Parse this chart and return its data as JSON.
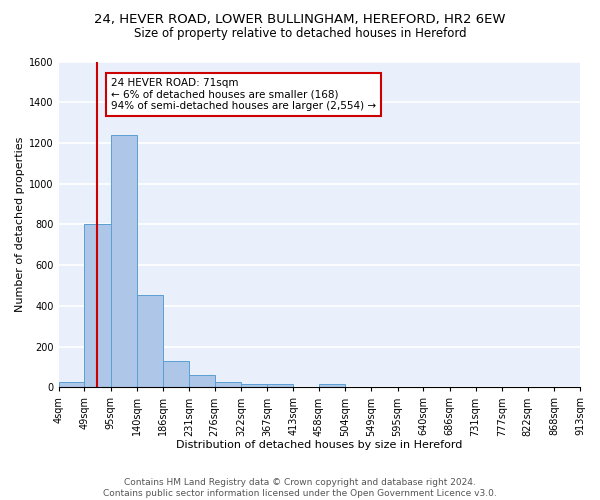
{
  "title1": "24, HEVER ROAD, LOWER BULLINGHAM, HEREFORD, HR2 6EW",
  "title2": "Size of property relative to detached houses in Hereford",
  "xlabel": "Distribution of detached houses by size in Hereford",
  "ylabel": "Number of detached properties",
  "bar_edges": [
    4,
    49,
    95,
    140,
    186,
    231,
    276,
    322,
    367,
    413,
    458,
    504,
    549,
    595,
    640,
    686,
    731,
    777,
    822,
    868,
    913
  ],
  "bar_heights": [
    25,
    800,
    1240,
    455,
    130,
    62,
    28,
    18,
    18,
    0,
    18,
    0,
    0,
    0,
    0,
    0,
    0,
    0,
    0,
    0
  ],
  "bar_color": "#aec6e8",
  "bar_edge_color": "#5a9fd4",
  "bg_color": "#eaf0fb",
  "grid_color": "#ffffff",
  "vline_x": 71,
  "vline_color": "#cc0000",
  "annotation_text": "24 HEVER ROAD: 71sqm\n← 6% of detached houses are smaller (168)\n94% of semi-detached houses are larger (2,554) →",
  "annotation_box_color": "#ffffff",
  "annotation_box_edge": "#cc0000",
  "ylim": [
    0,
    1600
  ],
  "yticks": [
    0,
    200,
    400,
    600,
    800,
    1000,
    1200,
    1400,
    1600
  ],
  "tick_labels": [
    "4sqm",
    "49sqm",
    "95sqm",
    "140sqm",
    "186sqm",
    "231sqm",
    "276sqm",
    "322sqm",
    "367sqm",
    "413sqm",
    "458sqm",
    "504sqm",
    "549sqm",
    "595sqm",
    "640sqm",
    "686sqm",
    "731sqm",
    "777sqm",
    "822sqm",
    "868sqm",
    "913sqm"
  ],
  "footer": "Contains HM Land Registry data © Crown copyright and database right 2024.\nContains public sector information licensed under the Open Government Licence v3.0.",
  "title1_fontsize": 9.5,
  "title2_fontsize": 8.5,
  "xlabel_fontsize": 8,
  "ylabel_fontsize": 8,
  "tick_fontsize": 7,
  "footer_fontsize": 6.5
}
